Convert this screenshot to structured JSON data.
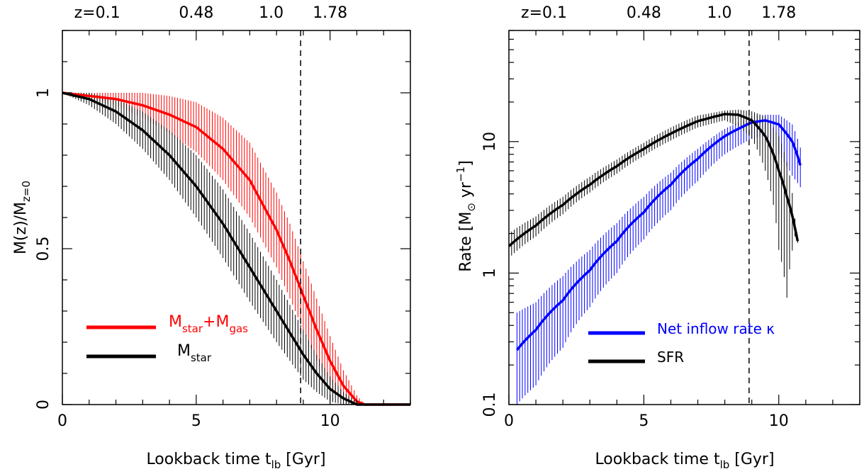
{
  "chart_data": [
    {
      "type": "line",
      "panel": "left",
      "xlabel": "Lookback time t",
      "xlabel_sub": "lb",
      "xlabel_unit": " [Gyr]",
      "ylabel": "M(z)/M",
      "ylabel_sub": "z=0",
      "xlim": [
        0,
        13
      ],
      "ylim": [
        0,
        1.2
      ],
      "x_ticks": [
        "0",
        "5",
        "10"
      ],
      "y_ticks": [
        "0",
        "0.5",
        "1"
      ],
      "top_axis_labels": [
        {
          "label": "z=0.1",
          "t": 1.3
        },
        {
          "label": "0.48",
          "t": 5.0
        },
        {
          "label": "1.0",
          "t": 7.8
        },
        {
          "label": "1.78",
          "t": 10.0
        }
      ],
      "vline_t": 8.9,
      "legend_location": "lower-left",
      "series": [
        {
          "key": "total",
          "legend_main": "M",
          "legend_sub1": "star",
          "legend_plus": "+M",
          "legend_sub2": "gas",
          "color": "#ff0000",
          "x": [
            0,
            1,
            2,
            3,
            4,
            5,
            6,
            7,
            8,
            8.5,
            9,
            9.5,
            10,
            10.5,
            11,
            11.3,
            12,
            13
          ],
          "y": [
            1.0,
            0.99,
            0.98,
            0.96,
            0.93,
            0.89,
            0.82,
            0.72,
            0.56,
            0.46,
            0.35,
            0.24,
            0.14,
            0.06,
            0.01,
            0.0,
            0.0,
            0.0
          ],
          "err": [
            0.0,
            0.01,
            0.02,
            0.04,
            0.06,
            0.08,
            0.1,
            0.12,
            0.12,
            0.12,
            0.11,
            0.1,
            0.08,
            0.05,
            0.02,
            0.0,
            0.0,
            0.0
          ]
        },
        {
          "key": "stars",
          "legend_main": "M",
          "legend_sub1": "star",
          "color": "#000000",
          "x": [
            0,
            1,
            2,
            3,
            4,
            5,
            6,
            7,
            8,
            8.5,
            9,
            9.5,
            10,
            10.5,
            11,
            11.3,
            12,
            13
          ],
          "y": [
            1.0,
            0.98,
            0.94,
            0.88,
            0.8,
            0.7,
            0.58,
            0.44,
            0.3,
            0.23,
            0.16,
            0.1,
            0.05,
            0.02,
            0.0,
            0.0,
            0.0,
            0.0
          ],
          "err": [
            0.0,
            0.02,
            0.04,
            0.06,
            0.08,
            0.1,
            0.11,
            0.11,
            0.1,
            0.09,
            0.08,
            0.06,
            0.04,
            0.02,
            0.01,
            0.0,
            0.0,
            0.0
          ]
        }
      ]
    },
    {
      "type": "line",
      "panel": "right",
      "yscale": "log",
      "xlabel": "Lookback time t",
      "xlabel_sub": "lb",
      "xlabel_unit": " [Gyr]",
      "ylabel": "Rate [M",
      "ylabel_sym": "⊙",
      "ylabel_mid": " yr",
      "ylabel_sup": "−1",
      "ylabel_end": "]",
      "xlim": [
        0,
        13
      ],
      "ylim": [
        0.1,
        70
      ],
      "x_ticks": [
        "0",
        "5",
        "10"
      ],
      "y_ticks": [
        {
          "label": "0.1",
          "value": 0.1
        },
        {
          "label": "1",
          "value": 1
        },
        {
          "label": "10",
          "value": 10
        }
      ],
      "top_axis_labels": [
        {
          "label": "z=0.1",
          "t": 1.3
        },
        {
          "label": "0.48",
          "t": 5.0
        },
        {
          "label": "1.0",
          "t": 7.8
        },
        {
          "label": "1.78",
          "t": 10.0
        }
      ],
      "vline_t": 8.9,
      "legend_location": "lower-right",
      "series": [
        {
          "key": "inflow",
          "legend_text": "Net inflow rate κ",
          "color": "#0000ff",
          "x": [
            0.3,
            1,
            2,
            3,
            4,
            5,
            6,
            7,
            8,
            9,
            9.5,
            10,
            10.5,
            10.8
          ],
          "y": [
            0.26,
            0.37,
            0.62,
            1.05,
            1.75,
            2.9,
            4.7,
            7.4,
            11.0,
            14.0,
            14.5,
            13.5,
            10.0,
            6.6
          ],
          "lo": [
            0.1,
            0.14,
            0.27,
            0.55,
            1.0,
            1.8,
            3.0,
            5.0,
            8.0,
            10.5,
            11.0,
            8.0,
            5.5,
            4.5
          ],
          "hi": [
            0.5,
            0.6,
            0.95,
            1.5,
            2.4,
            3.8,
            5.8,
            8.8,
            12.5,
            15.5,
            16.0,
            16.0,
            13.5,
            9.0
          ]
        },
        {
          "key": "sfr",
          "legend_text": "SFR",
          "color": "#000000",
          "x": [
            0.0,
            1,
            2,
            3,
            4,
            5,
            6,
            7,
            8,
            8.5,
            9,
            9.5,
            10,
            10.3,
            10.6,
            10.7
          ],
          "y": [
            1.6,
            2.3,
            3.3,
            4.7,
            6.5,
            8.8,
            11.5,
            14.3,
            16.2,
            16.0,
            14.5,
            11.0,
            6.0,
            3.8,
            2.2,
            1.75
          ],
          "lo": [
            1.3,
            1.9,
            2.8,
            4.1,
            5.7,
            7.8,
            10.2,
            12.8,
            14.5,
            13.0,
            10.5,
            6.0,
            1.5,
            0.65,
            1.9,
            1.7
          ],
          "hi": [
            2.0,
            2.7,
            3.8,
            5.4,
            7.3,
            9.8,
            12.8,
            15.8,
            17.2,
            17.5,
            17.0,
            15.5,
            11.0,
            7.0,
            2.6,
            1.8
          ]
        }
      ]
    }
  ]
}
